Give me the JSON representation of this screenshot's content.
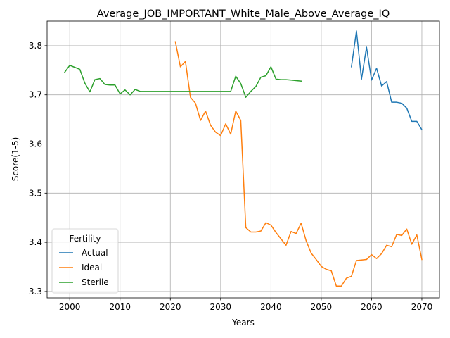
{
  "chart_data": {
    "type": "line",
    "title": "Average_JOB_IMPORTANT_White_Male_Above_Average_IQ",
    "xlabel": "Years",
    "ylabel": "Score(1-5)",
    "xlim": [
      1995.5,
      2073.5
    ],
    "ylim": [
      3.287,
      3.85
    ],
    "xticks": [
      2000,
      2010,
      2020,
      2030,
      2040,
      2050,
      2060,
      2070
    ],
    "yticks": [
      3.3,
      3.4,
      3.5,
      3.6,
      3.7,
      3.8
    ],
    "grid": true,
    "legend": {
      "title": "Fertility",
      "placement": "lower-left"
    },
    "series": [
      {
        "name": "Actual",
        "color": "#1f77b4",
        "x": [
          2056,
          2057,
          2058,
          2059,
          2060,
          2061,
          2062,
          2063,
          2064,
          2065,
          2066,
          2067,
          2068,
          2069,
          2070
        ],
        "y": [
          3.757,
          3.83,
          3.732,
          3.797,
          3.73,
          3.754,
          3.718,
          3.727,
          3.685,
          3.685,
          3.683,
          3.673,
          3.646,
          3.646,
          3.629
        ]
      },
      {
        "name": "Ideal",
        "color": "#ff7f0e",
        "x": [
          2021,
          2022,
          2023,
          2024,
          2025,
          2026,
          2027,
          2028,
          2029,
          2030,
          2031,
          2032,
          2033,
          2034,
          2035,
          2036,
          2037,
          2038,
          2039,
          2040,
          2041,
          2042,
          2043,
          2044,
          2045,
          2046,
          2047,
          2048,
          2049,
          2050,
          2051,
          2052,
          2053,
          2054,
          2055,
          2056,
          2057,
          2058,
          2059,
          2060,
          2061,
          2062,
          2063,
          2064,
          2065,
          2066,
          2067,
          2068,
          2069,
          2070
        ],
        "y": [
          3.808,
          3.757,
          3.768,
          3.695,
          3.683,
          3.648,
          3.667,
          3.638,
          3.624,
          3.617,
          3.641,
          3.62,
          3.667,
          3.648,
          3.43,
          3.421,
          3.421,
          3.423,
          3.44,
          3.435,
          3.42,
          3.407,
          3.394,
          3.422,
          3.418,
          3.439,
          3.403,
          3.378,
          3.365,
          3.351,
          3.345,
          3.342,
          3.311,
          3.311,
          3.327,
          3.331,
          3.363,
          3.364,
          3.365,
          3.375,
          3.367,
          3.377,
          3.394,
          3.391,
          3.416,
          3.414,
          3.427,
          3.396,
          3.415,
          3.365
        ]
      },
      {
        "name": "Sterile",
        "color": "#2ca02c",
        "x": [
          1999,
          2000,
          2001,
          2002,
          2003,
          2004,
          2005,
          2006,
          2007,
          2008,
          2009,
          2010,
          2011,
          2012,
          2013,
          2014,
          2015,
          2016,
          2017,
          2018,
          2019,
          2020,
          2021,
          2022,
          2023,
          2024,
          2025,
          2026,
          2027,
          2028,
          2029,
          2030,
          2031,
          2032,
          2033,
          2034,
          2035,
          2036,
          2037,
          2038,
          2039,
          2040,
          2041,
          2042,
          2043,
          2044,
          2045,
          2046
        ],
        "y": [
          3.746,
          3.76,
          3.756,
          3.752,
          3.724,
          3.706,
          3.731,
          3.733,
          3.721,
          3.72,
          3.72,
          3.702,
          3.71,
          3.7,
          3.711,
          3.707,
          3.707,
          3.707,
          3.707,
          3.707,
          3.707,
          3.707,
          3.707,
          3.707,
          3.707,
          3.707,
          3.707,
          3.707,
          3.707,
          3.707,
          3.707,
          3.707,
          3.707,
          3.707,
          3.738,
          3.723,
          3.695,
          3.707,
          3.717,
          3.736,
          3.739,
          3.757,
          3.732,
          3.731,
          3.731,
          3.73,
          3.729,
          3.728
        ]
      }
    ]
  }
}
